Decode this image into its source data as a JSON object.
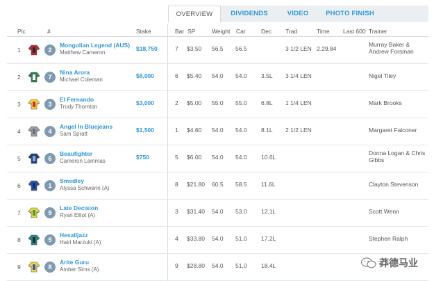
{
  "tabs": [
    {
      "label": "OVERVIEW",
      "active": true
    },
    {
      "label": "DIVIDENDS",
      "active": false
    },
    {
      "label": "VIDEO",
      "active": false
    },
    {
      "label": "PHOTO FINISH",
      "active": false
    }
  ],
  "columns": {
    "plc": "Plc",
    "num": "#",
    "stake": "Stake",
    "bar": "Bar",
    "sp": "SP",
    "weight": "Weight",
    "car": "Car",
    "dec": "Dec",
    "trad": "Trad",
    "time": "Time",
    "last600": "Last 600",
    "trainer": "Trainer"
  },
  "rows": [
    {
      "plc": "1",
      "num": "2",
      "horse": "Mongolian Legend (AUS)",
      "jockey": "Matthew Cameron",
      "stake": "$18,750",
      "bar": "7",
      "sp": "$3.50",
      "weight": "56.5",
      "car": "56.5",
      "dec": "",
      "trad": "3 1/2 LEN",
      "time": "2.29.84",
      "trainer": "Murray Baker & Andrew Forsman",
      "silk": "silk-red-black"
    },
    {
      "plc": "2",
      "num": "7",
      "horse": "Nina Arora",
      "jockey": "Michael Coleman",
      "stake": "$6,000",
      "bar": "6",
      "sp": "$5.40",
      "weight": "54.0",
      "car": "54.0",
      "dec": "3.5L",
      "trad": "3 1/4 LEN",
      "time": "",
      "trainer": "Nigel Tiley",
      "silk": "silk-green-white"
    },
    {
      "plc": "3",
      "num": "3",
      "horse": "El Fernando",
      "jockey": "Trudy Thornton",
      "stake": "$3,000",
      "bar": "2",
      "sp": "$5.00",
      "weight": "55.0",
      "car": "55.0",
      "dec": "6.8L",
      "trad": "1 1/4 LEN",
      "time": "",
      "trainer": "Mark Brooks",
      "silk": "silk-yellow-red"
    },
    {
      "plc": "4",
      "num": "4",
      "horse": "Angel In Bluejeans",
      "jockey": "Sam Spratt",
      "stake": "$1,500",
      "bar": "1",
      "sp": "$4.60",
      "weight": "54.0",
      "car": "54.0",
      "dec": "8.1L",
      "trad": "2 1/2 LEN",
      "time": "",
      "trainer": "Margaret Falconer",
      "silk": "silk-grey"
    },
    {
      "plc": "5",
      "num": "6",
      "horse": "Beaufighter",
      "jockey": "Cameron Lammas",
      "stake": "$750",
      "bar": "5",
      "sp": "$6.00",
      "weight": "54.0",
      "car": "54.0",
      "dec": "10.6L",
      "trad": "",
      "time": "",
      "trainer": "Donna Logan & Chris Gibbs",
      "silk": "silk-navy"
    },
    {
      "plc": "6",
      "num": "1",
      "horse": "Smedley",
      "jockey": "Alyssa Schwerin (A)",
      "stake": "",
      "bar": "8",
      "sp": "$21.80",
      "weight": "60.5",
      "car": "58.5",
      "dec": "11.6L",
      "trad": "",
      "time": "",
      "trainer": "Clayton Stevenson",
      "silk": "silk-blue"
    },
    {
      "plc": "7",
      "num": "9",
      "horse": "Late Decision",
      "jockey": "Ryan Elliot (A)",
      "stake": "",
      "bar": "3",
      "sp": "$31.40",
      "weight": "54.0",
      "car": "53.0",
      "dec": "12.1L",
      "trad": "",
      "time": "",
      "trainer": "Scott Wenn",
      "silk": "silk-yellow-green"
    },
    {
      "plc": "8",
      "num": "5",
      "horse": "Hesalljazz",
      "jockey": "Hairi Marzuki (A)",
      "stake": "",
      "bar": "4",
      "sp": "$33.80",
      "weight": "54.0",
      "car": "51.0",
      "dec": "17.2L",
      "trad": "",
      "time": "",
      "trainer": "Stephen Ralph",
      "silk": "silk-teal"
    },
    {
      "plc": "9",
      "num": "8",
      "horse": "Arite Guru",
      "jockey": "Amber Sims (A)",
      "stake": "",
      "bar": "9",
      "sp": "$28.80",
      "weight": "54.0",
      "car": "51.0",
      "dec": "18.4L",
      "trad": "",
      "time": "",
      "trainer": "",
      "silk": "silk-yellow-blue"
    }
  ],
  "watermark": {
    "text": "莽德马业"
  },
  "colors": {
    "link": "#2f97d6",
    "badge": "#7f9ab0",
    "tabbar": "#eceff2"
  }
}
